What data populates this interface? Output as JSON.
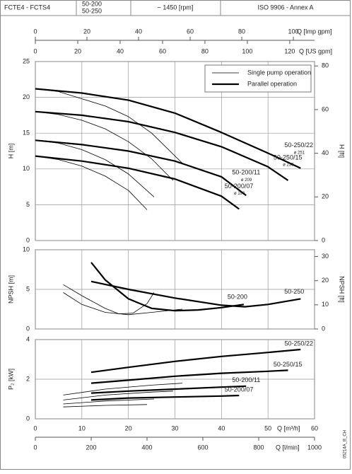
{
  "header": {
    "series": "FCTE4 - FCTS4",
    "models": [
      "50-200",
      "50-250"
    ],
    "speed": "~ 1450 [rpm]",
    "standard": "ISO 9906 - Annex A"
  },
  "drawing_id": "05214A_B_CH",
  "chart_data": [
    {
      "type": "line",
      "ylabel": "H [m]",
      "y2label": "H [ft]",
      "xlim": [
        0,
        60
      ],
      "xticks": [
        0,
        10,
        20,
        30,
        40,
        50,
        60
      ],
      "ylim": [
        0,
        25
      ],
      "yticks": [
        0,
        5,
        10,
        15,
        20,
        25
      ],
      "y2lim": [
        0,
        82.02
      ],
      "y2ticks": [
        0,
        20,
        40,
        60,
        80
      ],
      "grid": true,
      "top_axes": [
        {
          "label": "Q [Imp gpm]",
          "xlim": [
            0,
            108.2
          ],
          "xticks": [
            0,
            20,
            40,
            60,
            80,
            100
          ]
        },
        {
          "label": "Q [US gpm]",
          "xlim": [
            0,
            131.7
          ],
          "xticks": [
            0,
            20,
            40,
            60,
            80,
            100,
            120
          ]
        }
      ],
      "legend": {
        "position": "upper right",
        "entries": [
          {
            "label": "Single pump operation",
            "style": "thin"
          },
          {
            "label": "Parallel operation",
            "style": "thick"
          }
        ]
      },
      "series": [
        {
          "style": "thin",
          "color": "#000000",
          "x": [
            0,
            5,
            10,
            15,
            20,
            25,
            31.6
          ],
          "values": [
            21.2,
            20.8,
            19.8,
            18.8,
            17.3,
            15.0,
            10.8
          ]
        },
        {
          "style": "thin",
          "color": "#000000",
          "x": [
            0,
            5,
            10,
            15,
            20,
            25,
            29.6
          ],
          "values": [
            18.0,
            17.6,
            16.8,
            15.6,
            13.8,
            11.4,
            8.4
          ]
        },
        {
          "style": "thin",
          "color": "#000000",
          "x": [
            0,
            5,
            10,
            15,
            20,
            25.5
          ],
          "values": [
            14.0,
            13.6,
            12.7,
            11.3,
            9.3,
            6.1
          ]
        },
        {
          "style": "thin",
          "color": "#000000",
          "x": [
            0,
            5,
            10,
            15,
            20,
            24
          ],
          "values": [
            11.8,
            11.3,
            10.4,
            9.0,
            7.0,
            4.3
          ]
        },
        {
          "name": "50-250/22",
          "diameter": "ø 251",
          "style": "thick",
          "color": "#000000",
          "x": [
            0,
            10,
            20,
            30,
            40,
            50,
            57
          ],
          "values": [
            21.2,
            20.6,
            19.6,
            17.8,
            15.1,
            12.2,
            10.1
          ]
        },
        {
          "name": "50-250/15",
          "diameter": "ø 233",
          "style": "thick",
          "color": "#000000",
          "x": [
            0,
            10,
            20,
            30,
            40,
            50,
            54.3
          ],
          "values": [
            18.0,
            17.5,
            16.6,
            15.1,
            13.1,
            10.3,
            8.4
          ]
        },
        {
          "name": "50-200/11",
          "diameter": "ø 209",
          "style": "thick",
          "color": "#000000",
          "x": [
            0,
            10,
            20,
            30,
            40,
            45.3
          ],
          "values": [
            14.0,
            13.4,
            12.5,
            11.1,
            8.9,
            6.3
          ]
        },
        {
          "name": "50-200/07",
          "diameter": "ø 190",
          "style": "thick",
          "color": "#000000",
          "x": [
            0,
            10,
            20,
            30,
            40,
            43.8
          ],
          "values": [
            11.8,
            11.1,
            10.1,
            8.6,
            6.2,
            4.4
          ]
        }
      ]
    },
    {
      "type": "line",
      "ylabel": "NPSH [m]",
      "y2label": "NPSH [ft]",
      "xlim": [
        0,
        60
      ],
      "xticks": [
        0,
        10,
        20,
        30,
        40,
        50,
        60
      ],
      "ylim": [
        0,
        10
      ],
      "yticks": [
        0,
        5,
        10
      ],
      "y2lim": [
        0,
        32.81
      ],
      "y2ticks": [
        0,
        10,
        20,
        30
      ],
      "grid": true,
      "series": [
        {
          "style": "thin",
          "color": "#000000",
          "x": [
            6,
            10,
            15,
            18,
            21,
            24,
            25.5
          ],
          "values": [
            5.6,
            4.2,
            2.6,
            1.9,
            2.0,
            3.2,
            4.6
          ]
        },
        {
          "style": "thin",
          "color": "#000000",
          "x": [
            6,
            10,
            15,
            20,
            25,
            31.6
          ],
          "values": [
            4.6,
            3.1,
            2.1,
            1.8,
            2.1,
            2.5
          ]
        },
        {
          "name": "50-200",
          "style": "thick",
          "color": "#000000",
          "x": [
            12,
            15,
            20,
            25,
            30,
            35,
            40,
            44.8
          ],
          "values": [
            8.4,
            6.2,
            3.8,
            2.6,
            2.3,
            2.4,
            2.7,
            3.1
          ]
        },
        {
          "name": "50-250",
          "style": "thick",
          "color": "#000000",
          "x": [
            12,
            20,
            30,
            40,
            45,
            50,
            57
          ],
          "values": [
            6.0,
            5.0,
            3.9,
            3.0,
            2.8,
            3.1,
            3.8
          ]
        }
      ]
    },
    {
      "type": "line",
      "ylabel": "P₂ [kW]",
      "xlabel": "Q [m³/h]",
      "xlim": [
        0,
        60
      ],
      "xticks": [
        0,
        10,
        20,
        30,
        40,
        50,
        60
      ],
      "ylim": [
        0,
        4
      ],
      "yticks": [
        0,
        2,
        4
      ],
      "grid": true,
      "bottom_axes": [
        {
          "label": "Q [l/min]",
          "xlim": [
            0,
            1000
          ],
          "xticks": [
            0,
            200,
            400,
            600,
            800,
            1000
          ]
        }
      ],
      "series": [
        {
          "style": "thin",
          "color": "#000000",
          "x": [
            6,
            15,
            25,
            31.6
          ],
          "values": [
            1.2,
            1.5,
            1.7,
            1.8
          ]
        },
        {
          "style": "thin",
          "color": "#000000",
          "x": [
            6,
            15,
            25,
            29.6
          ],
          "values": [
            0.95,
            1.2,
            1.35,
            1.4
          ]
        },
        {
          "style": "thin",
          "color": "#000000",
          "x": [
            6,
            15,
            25.5
          ],
          "values": [
            0.75,
            0.9,
            1.0
          ]
        },
        {
          "style": "thin",
          "color": "#000000",
          "x": [
            6,
            15,
            24
          ],
          "values": [
            0.6,
            0.68,
            0.72
          ]
        },
        {
          "name": "50-250/22",
          "style": "thick",
          "color": "#000000",
          "x": [
            12,
            20,
            30,
            40,
            50,
            57
          ],
          "values": [
            2.35,
            2.6,
            2.9,
            3.15,
            3.35,
            3.5
          ]
        },
        {
          "name": "50-250/15",
          "style": "thick",
          "color": "#000000",
          "x": [
            12,
            20,
            30,
            40,
            50,
            54.3
          ],
          "values": [
            1.8,
            1.95,
            2.15,
            2.3,
            2.4,
            2.45
          ]
        },
        {
          "name": "50-200/11",
          "style": "thick",
          "color": "#000000",
          "x": [
            12,
            20,
            30,
            40,
            45.3
          ],
          "values": [
            1.3,
            1.4,
            1.5,
            1.6,
            1.65
          ]
        },
        {
          "name": "50-200/07",
          "style": "thick",
          "color": "#000000",
          "x": [
            12,
            20,
            30,
            40,
            43.8
          ],
          "values": [
            0.95,
            1.05,
            1.1,
            1.15,
            1.18
          ]
        }
      ]
    }
  ]
}
